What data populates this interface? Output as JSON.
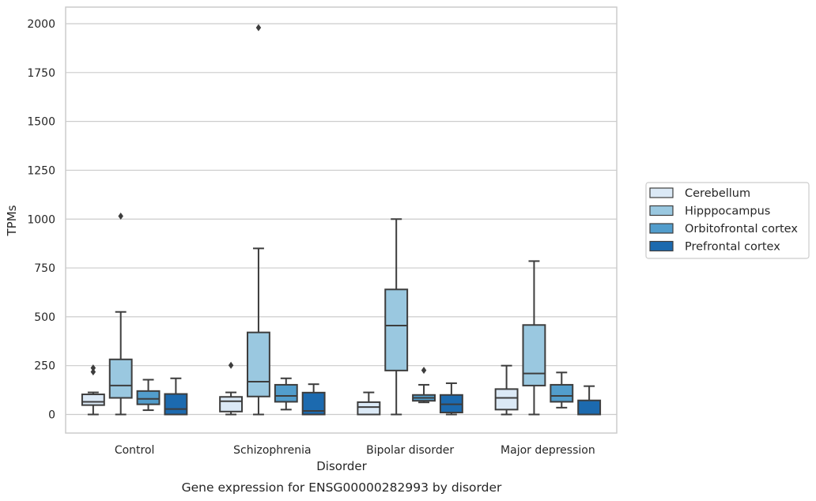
{
  "caption": "Gene expression for ENSG00000282993 by disorder",
  "chart_data": {
    "type": "boxplot",
    "title": "",
    "xlabel": "Disorder",
    "ylabel": "TPMs",
    "ylim": [
      -95,
      2085
    ],
    "yticks": [
      0,
      250,
      500,
      750,
      1000,
      1250,
      1500,
      1750,
      2000
    ],
    "grid": "horizontal",
    "legend_position": "right",
    "categories": [
      "Control",
      "Schizophrenia",
      "Bipolar disorder",
      "Major depression"
    ],
    "series": [
      {
        "name": "Cerebellum",
        "color": "#dbe9f6",
        "boxes": [
          {
            "whisker_low": 0,
            "q1": 48,
            "median": 65,
            "q3": 103,
            "whisker_high": 113,
            "outliers": [
              218,
              238
            ]
          },
          {
            "whisker_low": 0,
            "q1": 15,
            "median": 68,
            "q3": 90,
            "whisker_high": 113,
            "outliers": [
              252
            ]
          },
          {
            "whisker_low": 0,
            "q1": 0,
            "median": 38,
            "q3": 63,
            "whisker_high": 113,
            "outliers": []
          },
          {
            "whisker_low": 0,
            "q1": 25,
            "median": 85,
            "q3": 130,
            "whisker_high": 250,
            "outliers": []
          }
        ]
      },
      {
        "name": "Hipppocampus",
        "color": "#9ac8e0",
        "boxes": [
          {
            "whisker_low": 0,
            "q1": 85,
            "median": 148,
            "q3": 282,
            "whisker_high": 525,
            "outliers": [
              1015
            ]
          },
          {
            "whisker_low": 0,
            "q1": 92,
            "median": 168,
            "q3": 420,
            "whisker_high": 850,
            "outliers": [
              1980
            ]
          },
          {
            "whisker_low": 0,
            "q1": 225,
            "median": 455,
            "q3": 640,
            "whisker_high": 1000,
            "outliers": []
          },
          {
            "whisker_low": 0,
            "q1": 148,
            "median": 210,
            "q3": 458,
            "whisker_high": 785,
            "outliers": []
          }
        ]
      },
      {
        "name": "Orbitofrontal cortex",
        "color": "#529dcc",
        "boxes": [
          {
            "whisker_low": 22,
            "q1": 52,
            "median": 80,
            "q3": 120,
            "whisker_high": 178,
            "outliers": []
          },
          {
            "whisker_low": 25,
            "q1": 65,
            "median": 95,
            "q3": 152,
            "whisker_high": 185,
            "outliers": []
          },
          {
            "whisker_low": 62,
            "q1": 70,
            "median": 85,
            "q3": 100,
            "whisker_high": 152,
            "outliers": [
              226
            ]
          },
          {
            "whisker_low": 35,
            "q1": 65,
            "median": 95,
            "q3": 152,
            "whisker_high": 215,
            "outliers": []
          }
        ]
      },
      {
        "name": "Prefrontal cortex",
        "color": "#1c6aaf",
        "boxes": [
          {
            "whisker_low": 0,
            "q1": 0,
            "median": 28,
            "q3": 105,
            "whisker_high": 185,
            "outliers": []
          },
          {
            "whisker_low": 0,
            "q1": 0,
            "median": 18,
            "q3": 112,
            "whisker_high": 155,
            "outliers": []
          },
          {
            "whisker_low": 0,
            "q1": 10,
            "median": 52,
            "q3": 100,
            "whisker_high": 160,
            "outliers": []
          },
          {
            "whisker_low": 0,
            "q1": 0,
            "median": 0,
            "q3": 72,
            "whisker_high": 145,
            "outliers": []
          }
        ]
      }
    ]
  }
}
